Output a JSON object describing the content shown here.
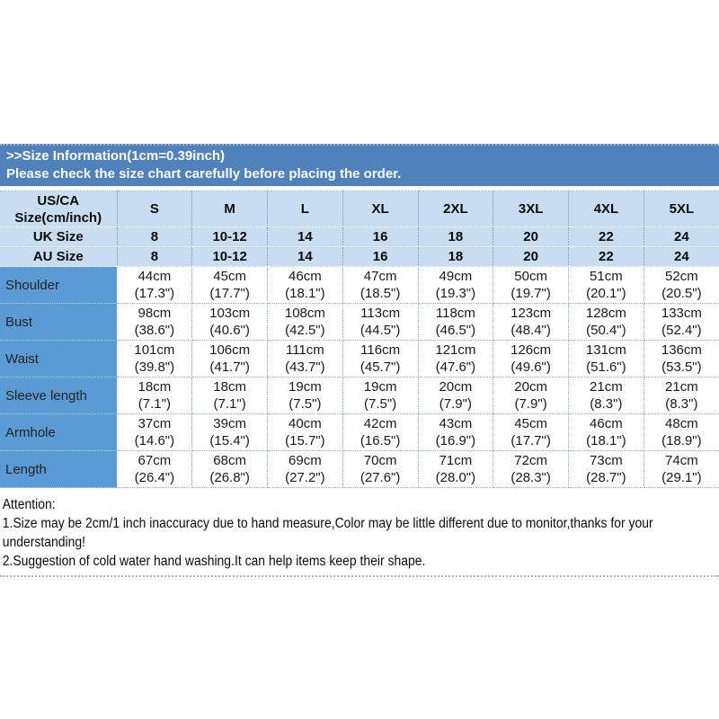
{
  "colors": {
    "band_blue": "#4f81bd",
    "head_blue": "#c9ddf1",
    "label_blue": "#5b9bd5"
  },
  "header": {
    "title": ">>Size Information(1cm=0.39inch)",
    "subtitle": "Please check the size chart carefully before placing the order."
  },
  "table": {
    "corner": {
      "line1": "US/CA",
      "line2": "Size(cm/inch)"
    },
    "sizes": [
      "S",
      "M",
      "L",
      "XL",
      "2XL",
      "3XL",
      "4XL",
      "5XL"
    ],
    "header_rows": [
      {
        "label": "UK Size",
        "values": [
          "8",
          "10-12",
          "14",
          "16",
          "18",
          "20",
          "22",
          "24"
        ]
      },
      {
        "label": "AU Size",
        "values": [
          "8",
          "10-12",
          "14",
          "16",
          "18",
          "20",
          "22",
          "24"
        ]
      }
    ],
    "rows": [
      {
        "label": "Shoulder",
        "values": [
          "44cm\n(17.3\")",
          "45cm\n(17.7\")",
          "46cm\n(18.1\")",
          "47cm\n(18.5\")",
          "49cm\n(19.3\")",
          "50cm\n(19.7\")",
          "51cm\n(20.1\")",
          "52cm\n(20.5\")"
        ]
      },
      {
        "label": "Bust",
        "values": [
          "98cm\n(38.6\")",
          "103cm\n(40.6\")",
          "108cm\n(42.5\")",
          "113cm\n(44.5\")",
          "118cm\n(46.5\")",
          "123cm\n(48.4\")",
          "128cm\n(50.4\")",
          "133cm\n(52.4\")"
        ]
      },
      {
        "label": "Waist",
        "values": [
          "101cm\n(39.8\")",
          "106cm\n(41.7\")",
          "111cm\n(43.7\")",
          "116cm\n(45.7\")",
          "121cm\n(47.6\")",
          "126cm\n(49.6\")",
          "131cm\n(51.6\")",
          "136cm\n(53.5\")"
        ]
      },
      {
        "label": "Sleeve length",
        "values": [
          "18cm\n(7.1\")",
          "18cm\n(7.1\")",
          "19cm\n(7.5\")",
          "19cm\n(7.5\")",
          "20cm\n(7.9\")",
          "20cm\n(7.9\")",
          "21cm\n(8.3\")",
          "21cm\n(8.3\")"
        ]
      },
      {
        "label": "Armhole",
        "values": [
          "37cm\n(14.6\")",
          "39cm\n(15.4\")",
          "40cm\n(15.7\")",
          "42cm\n(16.5\")",
          "43cm\n(16.9\")",
          "45cm\n(17.7\")",
          "46cm\n(18.1\")",
          "48cm\n(18.9\")"
        ]
      },
      {
        "label": "Length",
        "values": [
          "67cm\n(26.4\")",
          "68cm\n(26.8\")",
          "69cm\n(27.2\")",
          "70cm\n(27.6\")",
          "71cm\n(28.0\")",
          "72cm\n(28.3\")",
          "73cm\n(28.7\")",
          "74cm\n(29.1\")"
        ]
      }
    ]
  },
  "attention": {
    "heading": "Attention:",
    "line1": "1.Size may be 2cm/1 inch inaccuracy due to hand measure,Color may be little different due to monitor,thanks for your understanding!",
    "line2": "2.Suggestion of cold water hand washing.It can help items keep their shape."
  }
}
